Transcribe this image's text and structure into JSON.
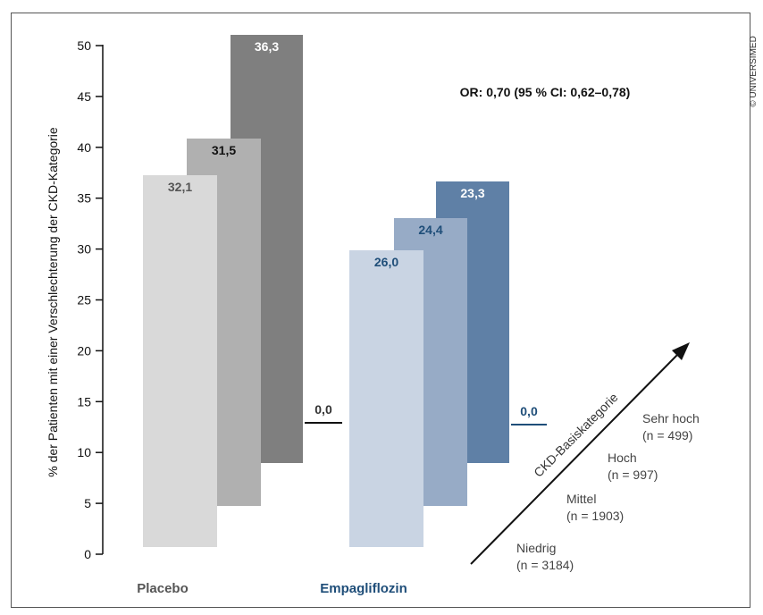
{
  "chart_data": {
    "type": "bar",
    "ylabel": "% der Patienten mit einer Verschlechterung der CKD-Kategorie",
    "ylim": [
      0,
      50
    ],
    "yticks": [
      0,
      5,
      10,
      15,
      20,
      25,
      30,
      35,
      40,
      45,
      50
    ],
    "groups": [
      {
        "name": "Placebo",
        "color": "#555555",
        "bars": [
          {
            "value_label": "32,1",
            "color": "#d9d9d9",
            "label_color": "#555555"
          },
          {
            "value_label": "31,5",
            "color": "#b0b0b0",
            "label_color": "#111111"
          },
          {
            "value_label": "36,3",
            "color": "#7f7f7f",
            "label_color": "#ffffff"
          },
          {
            "value_label": "0,0",
            "color": "#111111",
            "label_color": "#333333"
          }
        ]
      },
      {
        "name": "Empagliflozin",
        "color": "#1f4e79",
        "bars": [
          {
            "value_label": "26,0",
            "color": "#c9d4e3",
            "label_color": "#1f4e79"
          },
          {
            "value_label": "24,4",
            "color": "#97abc6",
            "label_color": "#1f4e79"
          },
          {
            "value_label": "23,3",
            "color": "#5f80a6",
            "label_color": "#ffffff"
          },
          {
            "value_label": "0,0",
            "color": "#1f4e79",
            "label_color": "#1f4e79"
          }
        ]
      }
    ],
    "annotation": "OR: 0,70 (95 % CI: 0,62–0,78)",
    "depth_axis": {
      "title": "CKD-Basiskategorie",
      "categories": [
        {
          "name": "Niedrig",
          "n": "(n = 3184)"
        },
        {
          "name": "Mittel",
          "n": "(n = 1903)"
        },
        {
          "name": "Hoch",
          "n": "(n = 997)"
        },
        {
          "name": "Sehr hoch",
          "n": "(n = 499)"
        }
      ]
    }
  },
  "copyright": "© UNIVERSIMED"
}
